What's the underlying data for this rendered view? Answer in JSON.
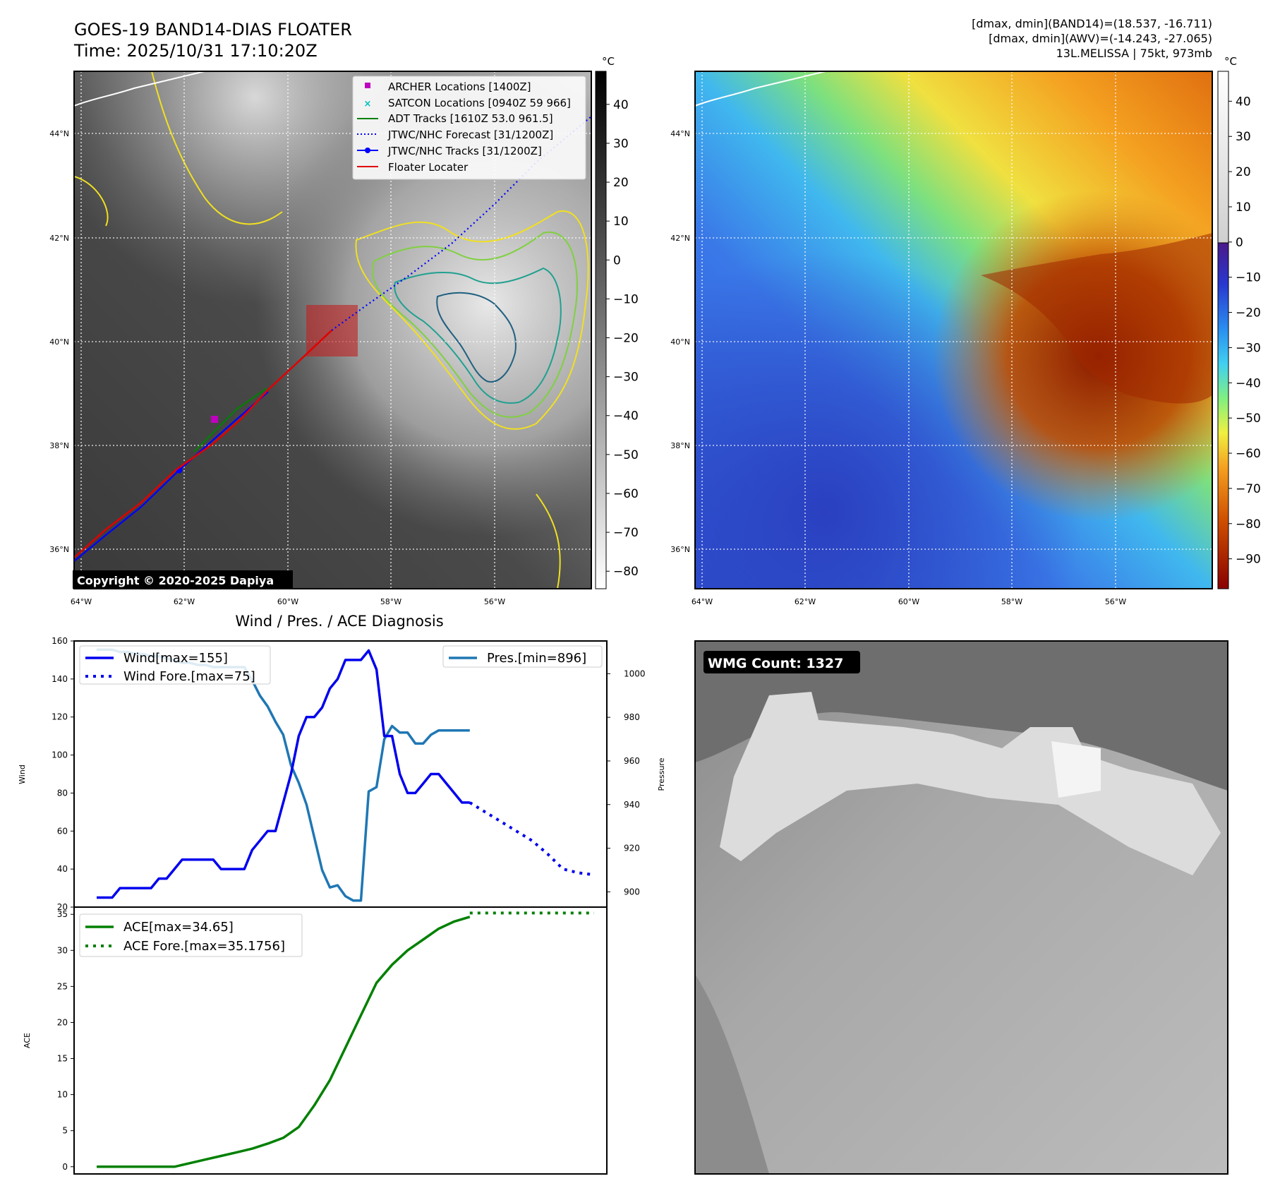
{
  "header": {
    "title_line1": "GOES-19 BAND14-DIAS FLOATER",
    "title_line2": "Time: 2025/10/31 17:10:20Z",
    "stats_line1": "[dmax, dmin](BAND14)=(18.537, -16.711)",
    "stats_line2": "[dmax, dmin](AWV)=(-14.243, -27.065)",
    "stats_line3": "13L.MELISSA | 75kt, 973mb"
  },
  "copyright": "Copyright © 2020-2025 Dapiya",
  "wmg_label": "WMG Count: 1327",
  "map_axes": {
    "lat_ticks": [
      "44°N",
      "42°N",
      "40°N",
      "38°N",
      "36°N"
    ],
    "lon_ticks": [
      "64°W",
      "62°W",
      "60°W",
      "58°W",
      "56°W"
    ]
  },
  "colorbar_ir": {
    "unit": "°C",
    "ticks": [
      "40",
      "30",
      "20",
      "10",
      "0",
      "−10",
      "−20",
      "−30",
      "−40",
      "−50",
      "−60",
      "−70",
      "−80"
    ]
  },
  "colorbar_wv": {
    "unit": "°C",
    "ticks": [
      "40",
      "30",
      "20",
      "10",
      "0",
      "−10",
      "−20",
      "−30",
      "−40",
      "−50",
      "−60",
      "−70",
      "−80",
      "−90"
    ]
  },
  "map_legend": [
    {
      "label": "ARCHER Locations [1400Z]",
      "color": "#c000c0",
      "marker": "square"
    },
    {
      "label": "SATCON Locations [0940Z 59 966]",
      "color": "#00bfbf",
      "marker": "x"
    },
    {
      "label": "ADT Tracks [1610Z 53.0 961.5]",
      "color": "#008000",
      "marker": "line"
    },
    {
      "label": "JTWC/NHC Forecast [31/1200Z]",
      "color": "#0000ff",
      "marker": "dotted"
    },
    {
      "label": "JTWC/NHC Tracks [31/1200Z]",
      "color": "#0000ff",
      "marker": "line-dot"
    },
    {
      "label": "Floater Locater",
      "color": "#e00000",
      "marker": "line"
    }
  ],
  "chart_data": [
    {
      "type": "line",
      "title": "Wind / Pres. / ACE Diagnosis",
      "ylabel": "Wind",
      "ylim": [
        20,
        160
      ],
      "y2label": "Pressure",
      "y2lim": [
        893,
        1015
      ],
      "yticks": [
        20,
        40,
        60,
        80,
        100,
        120,
        140,
        160
      ],
      "y2ticks": [
        900,
        920,
        940,
        960,
        980,
        1000
      ],
      "x_index_range": [
        0,
        64
      ],
      "series": [
        {
          "name": "Wind[max=155]",
          "axis": "left",
          "style": "solid",
          "color": "#0000ee",
          "x": [
            0,
            2,
            3,
            4,
            5,
            6,
            7,
            8,
            9,
            10,
            11,
            12,
            13,
            14,
            15,
            16,
            17,
            18,
            19,
            20,
            21,
            22,
            23,
            24,
            25,
            26,
            27,
            28,
            29,
            30,
            31,
            32,
            33,
            34,
            35,
            36,
            37,
            38,
            39,
            40,
            41,
            42,
            43,
            44,
            45,
            46,
            47,
            48
          ],
          "values": [
            25,
            25,
            30,
            30,
            30,
            30,
            30,
            35,
            35,
            40,
            45,
            45,
            45,
            45,
            45,
            40,
            40,
            40,
            40,
            50,
            55,
            60,
            60,
            75,
            90,
            110,
            120,
            120,
            125,
            135,
            140,
            150,
            150,
            150,
            155,
            145,
            110,
            110,
            90,
            80,
            80,
            85,
            90,
            90,
            85,
            80,
            75,
            75
          ]
        },
        {
          "name": "Wind Fore.[max=75]",
          "axis": "left",
          "style": "dotted",
          "color": "#0000ee",
          "x": [
            48,
            50,
            52,
            54,
            56,
            58,
            60,
            62,
            64
          ],
          "values": [
            75,
            70,
            65,
            60,
            55,
            48,
            40,
            38,
            37
          ]
        },
        {
          "name": "Pres.[min=896]",
          "axis": "right",
          "style": "solid",
          "color": "#1f77b4",
          "x": [
            0,
            1,
            2,
            3,
            4,
            5,
            6,
            7,
            8,
            9,
            10,
            11,
            12,
            13,
            14,
            15,
            16,
            17,
            18,
            19,
            20,
            21,
            22,
            23,
            24,
            25,
            26,
            27,
            28,
            29,
            30,
            31,
            32,
            33,
            34,
            35,
            36,
            37,
            38,
            39,
            40,
            41,
            42,
            43,
            44,
            45,
            46,
            47,
            48
          ],
          "values": [
            1011,
            1011,
            1011,
            1010,
            1010,
            1009,
            1009,
            1008,
            1008,
            1007,
            1006,
            1005,
            1005,
            1004,
            1004,
            1003,
            1003,
            1003,
            1003,
            1003,
            997,
            990,
            985,
            978,
            972,
            958,
            950,
            940,
            925,
            910,
            902,
            903,
            898,
            896,
            896,
            946,
            948,
            970,
            976,
            973,
            973,
            968,
            968,
            972,
            974,
            974,
            974,
            974,
            974
          ]
        },
        {
          "name": "ACE[max=34.65]",
          "axis": "ace",
          "style": "solid",
          "color": "#008000",
          "x": [
            0,
            10,
            12,
            14,
            16,
            18,
            20,
            22,
            24,
            26,
            28,
            30,
            32,
            34,
            36,
            38,
            40,
            42,
            44,
            46,
            48
          ],
          "values": [
            0,
            0,
            0.5,
            1.0,
            1.5,
            2.0,
            2.5,
            3.2,
            4.0,
            5.5,
            8.5,
            12.0,
            16.5,
            21.0,
            25.5,
            28.0,
            30.0,
            31.5,
            33.0,
            34.0,
            34.65
          ]
        },
        {
          "name": "ACE Fore.[max=35.1756]",
          "axis": "ace",
          "style": "dotted",
          "color": "#008000",
          "x": [
            48,
            64
          ],
          "values": [
            35.1756,
            35.1756
          ]
        }
      ],
      "ace_ylabel": "ACE",
      "ace_ylim": [
        -1,
        36
      ],
      "ace_yticks": [
        0,
        5,
        10,
        15,
        20,
        25,
        30,
        35
      ]
    }
  ]
}
